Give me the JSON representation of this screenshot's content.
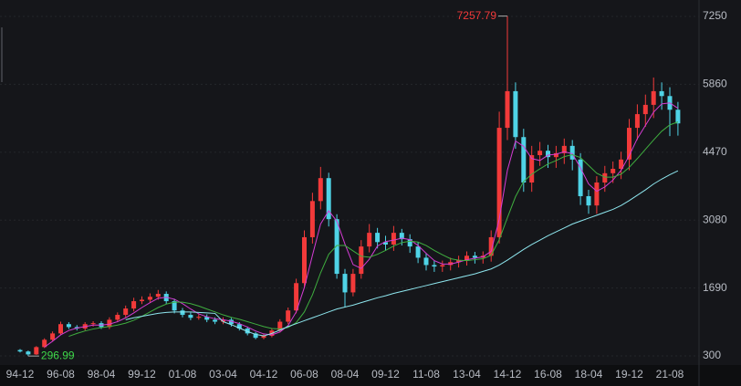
{
  "chart_data": {
    "type": "candlestick",
    "categories": [
      "94-12",
      null,
      null,
      null,
      null,
      "96-08",
      null,
      null,
      null,
      null,
      "98-04",
      null,
      null,
      null,
      null,
      "99-12",
      null,
      null,
      null,
      null,
      "01-08",
      null,
      null,
      null,
      null,
      "03-04",
      null,
      null,
      null,
      null,
      "04-12",
      null,
      null,
      null,
      null,
      "06-08",
      null,
      null,
      null,
      null,
      "08-04",
      null,
      null,
      null,
      null,
      "09-12",
      null,
      null,
      null,
      null,
      "11-08",
      null,
      null,
      null,
      null,
      "13-04",
      null,
      null,
      null,
      null,
      "14-12",
      null,
      null,
      null,
      null,
      "16-08",
      null,
      null,
      null,
      null,
      "18-04",
      null,
      null,
      null,
      null,
      "19-12",
      null,
      null,
      null,
      null,
      "21-08",
      null
    ],
    "open": [
      420,
      390,
      330,
      480,
      630,
      760,
      950,
      890,
      860,
      950,
      970,
      890,
      1040,
      1140,
      1270,
      1420,
      1450,
      1510,
      1570,
      1420,
      1230,
      1140,
      1080,
      1100,
      1040,
      1000,
      1040,
      950,
      860,
      760,
      670,
      710,
      820,
      1000,
      1230,
      1790,
      2730,
      3470,
      3940,
      3100,
      1980,
      1600,
      1980,
      2540,
      2820,
      2630,
      2580,
      2820,
      2690,
      2540,
      2310,
      2160,
      2130,
      2160,
      2220,
      2260,
      2350,
      2310,
      2350,
      2730,
      4970,
      5720,
      4780,
      3850,
      4410,
      4500,
      4370,
      4450,
      4600,
      4320,
      3570,
      3380,
      3850,
      4040,
      4130,
      4320,
      4970,
      5250,
      5440,
      5720,
      5620,
      5340
    ],
    "high": [
      440,
      410,
      500,
      660,
      800,
      1000,
      990,
      930,
      990,
      1010,
      1010,
      1090,
      1190,
      1330,
      1490,
      1520,
      1580,
      1650,
      1620,
      1470,
      1280,
      1190,
      1150,
      1150,
      1090,
      1090,
      1080,
      990,
      900,
      790,
      750,
      860,
      1050,
      1290,
      1880,
      2870,
      3640,
      4170,
      4050,
      3200,
      2080,
      2080,
      2670,
      3000,
      2920,
      2760,
      2960,
      2900,
      2790,
      2630,
      2400,
      2250,
      2250,
      2310,
      2350,
      2440,
      2430,
      2440,
      2870,
      5300,
      7257.79,
      5900,
      4950,
      4600,
      4680,
      4620,
      4600,
      4750,
      4720,
      4450,
      3700,
      3980,
      4190,
      4280,
      4480,
      5150,
      5450,
      5650,
      6000,
      5900,
      5800,
      5500
    ],
    "low": [
      370,
      296.99,
      320,
      460,
      600,
      730,
      850,
      820,
      820,
      900,
      850,
      850,
      990,
      1090,
      1210,
      1360,
      1390,
      1450,
      1360,
      1170,
      1090,
      1030,
      1040,
      990,
      950,
      950,
      900,
      820,
      720,
      640,
      640,
      680,
      780,
      950,
      1170,
      1700,
      2600,
      3300,
      2950,
      1880,
      1300,
      1520,
      1880,
      2420,
      2500,
      2450,
      2450,
      2560,
      2410,
      2200,
      2050,
      2020,
      2020,
      2050,
      2110,
      2150,
      2190,
      2190,
      2230,
      2600,
      4720,
      4540,
      3660,
      3660,
      4190,
      4150,
      4150,
      4230,
      4100,
      3390,
      3210,
      3210,
      3660,
      3840,
      3920,
      4100,
      4720,
      4990,
      5170,
      5340,
      4800,
      4810
    ],
    "close": [
      390,
      330,
      480,
      630,
      760,
      950,
      890,
      860,
      950,
      970,
      890,
      1040,
      1140,
      1270,
      1420,
      1450,
      1510,
      1570,
      1420,
      1230,
      1140,
      1080,
      1100,
      1040,
      1000,
      1040,
      950,
      860,
      760,
      670,
      710,
      820,
      1000,
      1230,
      1790,
      2730,
      3470,
      3940,
      3100,
      1980,
      1600,
      1980,
      2540,
      2820,
      2630,
      2580,
      2820,
      2690,
      2540,
      2310,
      2160,
      2130,
      2160,
      2220,
      2260,
      2350,
      2310,
      2350,
      2730,
      4970,
      5720,
      4780,
      3850,
      4410,
      4500,
      4370,
      4450,
      4600,
      4320,
      3570,
      3380,
      3850,
      4040,
      4130,
      4320,
      4970,
      5250,
      5440,
      5720,
      5620,
      5340,
      5060
    ],
    "up_color": "#f23a3a",
    "down_color": "#4fd3e6",
    "series": [
      {
        "color": "#d43cd4",
        "values": [
          null,
          null,
          null,
          480,
          600,
          730,
          820,
          870,
          900,
          930,
          930,
          950,
          1000,
          1080,
          1180,
          1290,
          1390,
          1480,
          1500,
          1460,
          1370,
          1260,
          1160,
          1100,
          1060,
          1040,
          1010,
          960,
          890,
          810,
          750,
          730,
          790,
          920,
          1200,
          1700,
          2360,
          3000,
          3270,
          3060,
          2590,
          2170,
          2090,
          2280,
          2550,
          2640,
          2670,
          2710,
          2680,
          2560,
          2400,
          2250,
          2180,
          2180,
          2220,
          2270,
          2300,
          2330,
          2440,
          3100,
          4100,
          4700,
          4590,
          4340,
          4300,
          4410,
          4430,
          4480,
          4440,
          4150,
          3820,
          3670,
          3760,
          3900,
          4100,
          4400,
          4750,
          5020,
          5290,
          5460,
          5480,
          5370
        ]
      },
      {
        "color": "#3fae3f",
        "values": [
          null,
          null,
          null,
          null,
          null,
          null,
          700,
          760,
          810,
          850,
          880,
          900,
          930,
          970,
          1030,
          1110,
          1200,
          1290,
          1360,
          1400,
          1400,
          1370,
          1320,
          1260,
          1200,
          1140,
          1090,
          1050,
          1000,
          950,
          900,
          860,
          850,
          880,
          980,
          1200,
          1550,
          2000,
          2380,
          2560,
          2560,
          2450,
          2340,
          2320,
          2380,
          2460,
          2550,
          2620,
          2650,
          2630,
          2560,
          2460,
          2370,
          2290,
          2260,
          2250,
          2270,
          2290,
          2360,
          2680,
          3130,
          3560,
          3870,
          4020,
          4130,
          4230,
          4300,
          4380,
          4420,
          4360,
          4200,
          4040,
          3960,
          3960,
          4020,
          4160,
          4340,
          4530,
          4720,
          4900,
          5030,
          5090
        ]
      },
      {
        "color": "#8ee6ee",
        "values": [
          null,
          null,
          null,
          null,
          null,
          null,
          null,
          null,
          null,
          null,
          null,
          null,
          null,
          1040,
          1080,
          1110,
          1140,
          1170,
          1190,
          1200,
          1200,
          1200,
          1190,
          1180,
          1170,
          1000,
          940,
          870,
          800,
          740,
          710,
          760,
          830,
          900,
          960,
          1020,
          1080,
          1140,
          1200,
          1260,
          1300,
          1340,
          1390,
          1440,
          1490,
          1530,
          1580,
          1620,
          1660,
          1700,
          1740,
          1780,
          1820,
          1860,
          1900,
          1940,
          1980,
          2030,
          2080,
          2160,
          2260,
          2370,
          2480,
          2580,
          2670,
          2760,
          2840,
          2920,
          3000,
          3060,
          3120,
          3180,
          3240,
          3300,
          3380,
          3480,
          3590,
          3700,
          3820,
          3920,
          4010,
          4090
        ]
      }
    ],
    "ylim": [
      113,
      7587
    ],
    "yticks": [
      300,
      1690,
      3080,
      4470,
      5860,
      7250
    ],
    "grid": true
  }
}
